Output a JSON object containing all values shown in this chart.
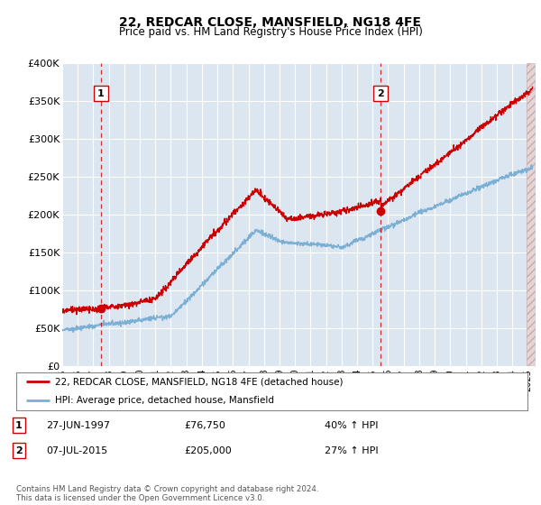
{
  "title": "22, REDCAR CLOSE, MANSFIELD, NG18 4FE",
  "subtitle": "Price paid vs. HM Land Registry's House Price Index (HPI)",
  "ylim": [
    0,
    400000
  ],
  "xlim_start": 1995.0,
  "xlim_end": 2025.5,
  "transaction1": {
    "date_num": 1997.49,
    "price": 76750,
    "label": "1"
  },
  "transaction2": {
    "date_num": 2015.52,
    "price": 205000,
    "label": "2"
  },
  "legend_line1": "22, REDCAR CLOSE, MANSFIELD, NG18 4FE (detached house)",
  "legend_line2": "HPI: Average price, detached house, Mansfield",
  "table_rows": [
    {
      "num": "1",
      "date": "27-JUN-1997",
      "price": "£76,750",
      "hpi": "40% ↑ HPI"
    },
    {
      "num": "2",
      "date": "07-JUL-2015",
      "price": "£205,000",
      "hpi": "27% ↑ HPI"
    }
  ],
  "footnote": "Contains HM Land Registry data © Crown copyright and database right 2024.\nThis data is licensed under the Open Government Licence v3.0.",
  "bg_color": "#dce6f1",
  "grid_color": "#ffffff",
  "red_line_color": "#cc0000",
  "blue_line_color": "#7bafd4",
  "hatch_color": "#cc9999"
}
